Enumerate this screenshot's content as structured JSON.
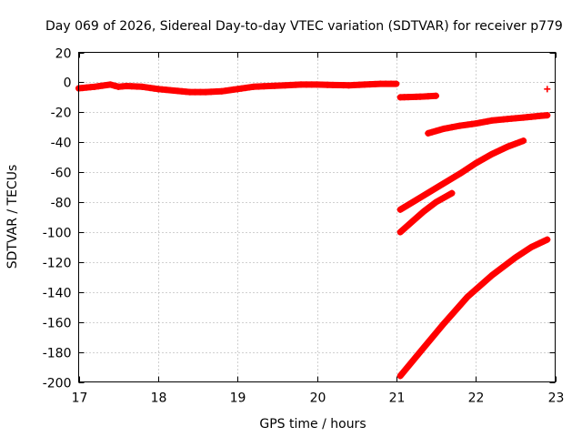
{
  "chart_data": {
    "type": "scatter",
    "title": "Day 069 of 2026, Sidereal Day-to-day VTEC variation (SDTVAR) for receiver p779",
    "xlabel": "GPS time / hours",
    "ylabel": "SDTVAR / TECUs",
    "xlim": [
      17,
      23
    ],
    "ylim": [
      -200,
      20
    ],
    "xticks": [
      17,
      18,
      19,
      20,
      21,
      22,
      23
    ],
    "yticks": [
      20,
      0,
      -20,
      -40,
      -60,
      -80,
      -100,
      -120,
      -140,
      -160,
      -180,
      -200
    ],
    "grid": true,
    "marker": "+",
    "color": "#ff0000",
    "series": [
      {
        "name": "main",
        "points": [
          [
            17.0,
            -4
          ],
          [
            17.2,
            -3
          ],
          [
            17.4,
            -1.5
          ],
          [
            17.5,
            -3
          ],
          [
            17.6,
            -2.5
          ],
          [
            17.8,
            -3
          ],
          [
            18.0,
            -4.5
          ],
          [
            18.2,
            -5.5
          ],
          [
            18.4,
            -6.5
          ],
          [
            18.6,
            -6.5
          ],
          [
            18.8,
            -6
          ],
          [
            19.0,
            -4.5
          ],
          [
            19.2,
            -3
          ],
          [
            19.4,
            -2.5
          ],
          [
            19.6,
            -2
          ],
          [
            19.8,
            -1.5
          ],
          [
            20.0,
            -1.5
          ],
          [
            20.2,
            -1.8
          ],
          [
            20.4,
            -2
          ],
          [
            20.6,
            -1.5
          ],
          [
            20.8,
            -1
          ],
          [
            21.0,
            -1
          ]
        ]
      },
      {
        "name": "seg-a",
        "points": [
          [
            21.05,
            -10
          ],
          [
            21.2,
            -9.8
          ],
          [
            21.35,
            -9.5
          ],
          [
            21.5,
            -9
          ]
        ]
      },
      {
        "name": "seg-b",
        "points": [
          [
            21.4,
            -34
          ],
          [
            21.6,
            -31
          ],
          [
            21.8,
            -29
          ],
          [
            22.0,
            -27.5
          ],
          [
            22.2,
            -25.5
          ],
          [
            22.4,
            -24.5
          ],
          [
            22.6,
            -23.5
          ],
          [
            22.8,
            -22.5
          ],
          [
            22.9,
            -22
          ]
        ]
      },
      {
        "name": "seg-c",
        "points": [
          [
            21.05,
            -85
          ],
          [
            21.3,
            -77
          ],
          [
            21.55,
            -69
          ],
          [
            21.8,
            -61
          ],
          [
            22.0,
            -54
          ],
          [
            22.2,
            -48
          ],
          [
            22.4,
            -43
          ],
          [
            22.6,
            -39
          ]
        ]
      },
      {
        "name": "seg-d",
        "points": [
          [
            21.05,
            -100
          ],
          [
            21.2,
            -93
          ],
          [
            21.35,
            -86
          ],
          [
            21.5,
            -80
          ],
          [
            21.7,
            -74
          ]
        ]
      },
      {
        "name": "seg-e",
        "points": [
          [
            21.05,
            -196
          ],
          [
            21.3,
            -180
          ],
          [
            21.6,
            -161
          ],
          [
            21.9,
            -143
          ],
          [
            22.2,
            -129
          ],
          [
            22.5,
            -117
          ],
          [
            22.7,
            -110
          ],
          [
            22.9,
            -105
          ]
        ]
      },
      {
        "name": "outlier",
        "points": [
          [
            22.9,
            -4.5
          ]
        ]
      }
    ]
  }
}
